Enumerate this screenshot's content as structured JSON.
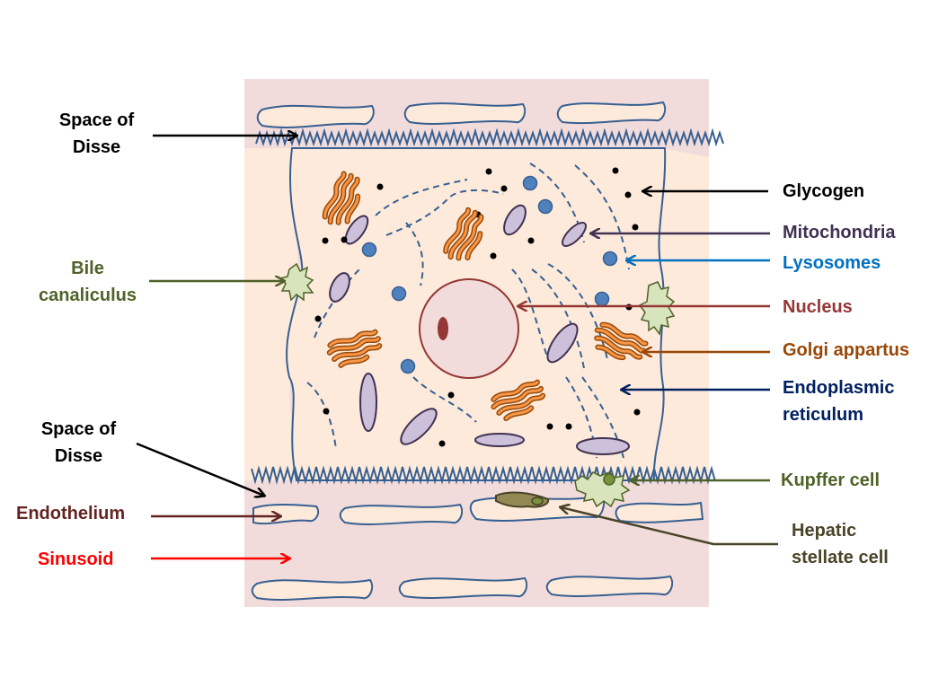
{
  "labels": {
    "space_disse_top": [
      "Space of",
      "Disse"
    ],
    "bile_canaliculus": [
      "Bile",
      "canaliculus"
    ],
    "space_disse_bottom": [
      "Space of",
      "Disse"
    ],
    "endothelium": "Endothelium",
    "sinusoid": "Sinusoid",
    "glycogen": "Glycogen",
    "mitochondria": "Mitochondria",
    "lysosomes": "Lysosomes",
    "nucleus": "Nucleus",
    "golgi": "Golgi appartus",
    "er": [
      "Endoplasmic",
      "reticulum"
    ],
    "kupffer": "Kupffer cell",
    "stellate": [
      "Hepatic",
      "stellate cell"
    ]
  },
  "colors": {
    "space_disse": "#000000",
    "bile_canaliculus": "#4f6228",
    "endothelium": "#632523",
    "sinusoid": "#ff0000",
    "glycogen": "#000000",
    "mitochondria": "#403152",
    "lysosomes": "#0070c0",
    "nucleus": "#953735",
    "golgi": "#984807",
    "er": "#002060",
    "kupffer": "#4f6228",
    "stellate": "#494429",
    "background_panel": "#f2dcdb",
    "hepatocyte": "#fdeada",
    "endothelial_cell": "#fdeada",
    "membrane": "#376092"
  }
}
